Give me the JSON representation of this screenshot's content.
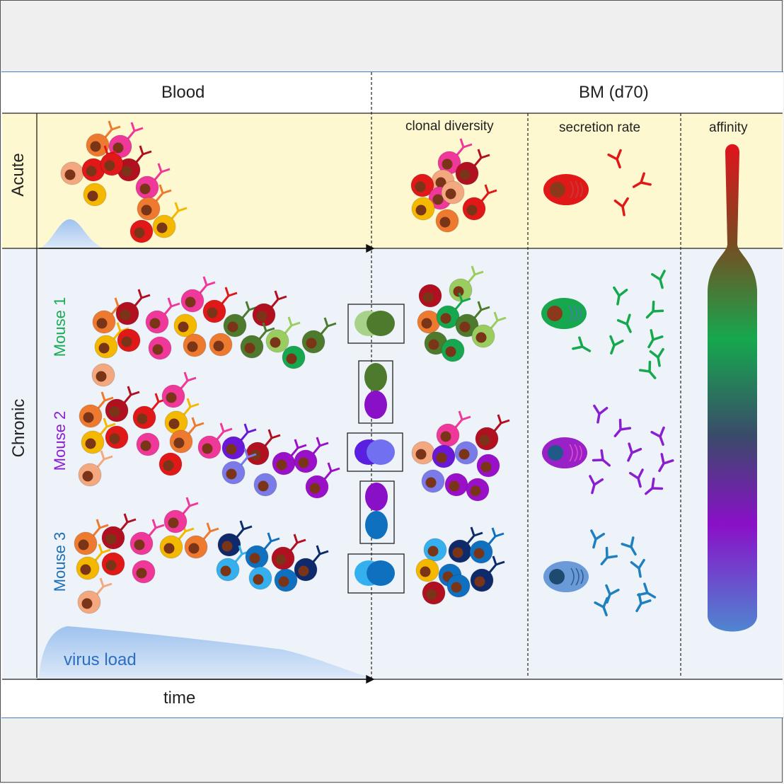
{
  "header": {
    "blood": "Blood",
    "bm": "BM (d70)"
  },
  "subheaders": {
    "clonal_diversity": "clonal diversity",
    "secretion_rate": "secretion rate",
    "affinity": "affinity"
  },
  "rows": {
    "acute": "Acute",
    "chronic": "Chronic"
  },
  "mice": [
    {
      "label": "Mouse 1",
      "color": "#1aaa55"
    },
    {
      "label": "Mouse 2",
      "color": "#8a1fd0"
    },
    {
      "label": "Mouse 3",
      "color": "#1f6fb2"
    }
  ],
  "curve_label": "virus load",
  "x_axis_label": "time",
  "colors": {
    "acute_bg": "#fdf8cf",
    "chronic_bg": "#eef3fa",
    "virus_fill": "#b9d3f2",
    "affinity_top": "#e0141e",
    "affinity_mid": "#16a84e",
    "affinity_low": "#8a10c8",
    "affinity_bottom": "#4f86d0"
  }
}
